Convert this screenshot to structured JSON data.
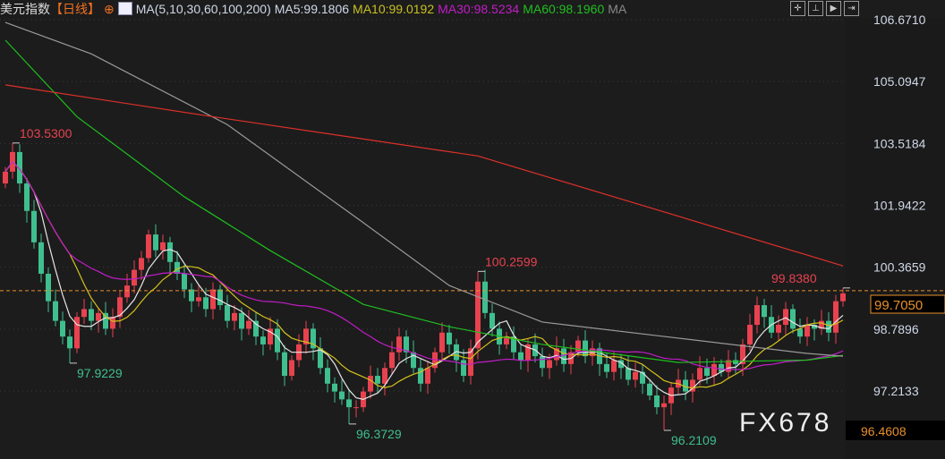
{
  "header": {
    "title": "美元指数",
    "period": "【日线】",
    "ma_label": "MA(5,10,30,60,100,200)",
    "ma5": "MA5:99.1806",
    "ma10": "MA10:99.0192",
    "ma30": "MA30:98.5234",
    "ma60": "MA60:98.1960",
    "ma_more": "MA",
    "tools": [
      "crosshair-icon",
      "zoom-icon",
      "play-icon",
      "exit-icon"
    ]
  },
  "watermark": "FX678",
  "colors": {
    "up": "#e8424f",
    "down": "#3fbf8f",
    "ma5": "#e6e6e6",
    "ma10": "#d4c21c",
    "ma30": "#c21cc8",
    "ma60": "#1fbf1f",
    "ma100": "#9a9a9a",
    "ma200": "#e0302a",
    "axis_text": "#cfd8e8",
    "last_price": "#e8902a"
  },
  "chart_data": {
    "type": "candlestick",
    "y_ticks": [
      "106.6710",
      "105.0947",
      "103.5184",
      "101.9422",
      "100.3659",
      "98.7896",
      "97.2133"
    ],
    "y_bottom_label": "96.4608",
    "last_price": "99.7050",
    "annotations": [
      {
        "label": "103.5300",
        "index": 1,
        "value": 103.53
      },
      {
        "label": "97.9229",
        "index": 9,
        "value": 97.9229
      },
      {
        "label": "96.3729",
        "index": 48,
        "value": 96.3729
      },
      {
        "label": "100.2599",
        "index": 66,
        "value": 100.2599
      },
      {
        "label": "96.2109",
        "index": 92,
        "value": 96.2109
      },
      {
        "label": "99.8380",
        "index": 117,
        "value": 99.838
      }
    ],
    "closes": [
      102.8,
      103.3,
      102.5,
      101.8,
      101.0,
      100.2,
      99.5,
      99.0,
      98.6,
      98.3,
      99.1,
      99.3,
      99.0,
      99.2,
      98.8,
      99.1,
      99.6,
      99.9,
      100.3,
      100.6,
      101.2,
      100.8,
      101.0,
      100.5,
      100.2,
      99.8,
      99.5,
      99.6,
      99.3,
      99.8,
      99.4,
      99.0,
      99.2,
      98.8,
      99.0,
      98.6,
      98.4,
      98.8,
      98.2,
      97.6,
      98.0,
      98.4,
      98.8,
      98.3,
      97.8,
      97.4,
      97.2,
      97.0,
      96.8,
      96.8,
      97.2,
      97.6,
      97.4,
      97.8,
      98.2,
      98.6,
      98.2,
      97.8,
      97.4,
      97.8,
      98.2,
      98.7,
      98.4,
      98.0,
      97.6,
      98.3,
      100.0,
      99.2,
      98.8,
      98.4,
      98.6,
      98.2,
      98.0,
      98.4,
      98.1,
      97.8,
      98.0,
      98.3,
      97.9,
      98.2,
      98.5,
      98.1,
      98.3,
      97.9,
      97.7,
      98.0,
      97.8,
      97.5,
      97.7,
      97.4,
      97.1,
      96.8,
      96.9,
      97.3,
      97.5,
      97.2,
      97.5,
      97.8,
      97.6,
      97.9,
      97.7,
      98.0,
      97.9,
      98.4,
      98.9,
      99.4,
      99.1,
      98.7,
      98.9,
      99.3,
      98.8,
      98.6,
      98.9,
      98.8,
      99.0,
      98.7,
      99.5,
      99.7
    ],
    "ma_series": [
      {
        "name": "MA60",
        "points": [
          [
            0,
            106.15
          ],
          [
            10,
            104.2
          ],
          [
            25,
            102.16
          ],
          [
            37,
            100.79
          ],
          [
            50,
            99.42
          ],
          [
            62,
            98.85
          ],
          [
            75,
            98.4
          ],
          [
            94,
            97.94
          ],
          [
            112,
            98.0
          ],
          [
            117,
            98.12
          ]
        ]
      },
      {
        "name": "MA100",
        "points": [
          [
            0,
            106.6
          ],
          [
            12,
            105.8
          ],
          [
            31,
            104.0
          ],
          [
            50,
            101.5
          ],
          [
            62,
            99.9
          ],
          [
            75,
            98.97
          ],
          [
            94,
            98.56
          ],
          [
            112,
            98.17
          ],
          [
            117,
            98.1
          ]
        ]
      },
      {
        "name": "MA200",
        "points": [
          [
            0,
            105.01
          ],
          [
            29,
            104.2
          ],
          [
            66,
            103.2
          ],
          [
            87,
            102.05
          ],
          [
            117,
            100.4
          ]
        ]
      }
    ]
  }
}
